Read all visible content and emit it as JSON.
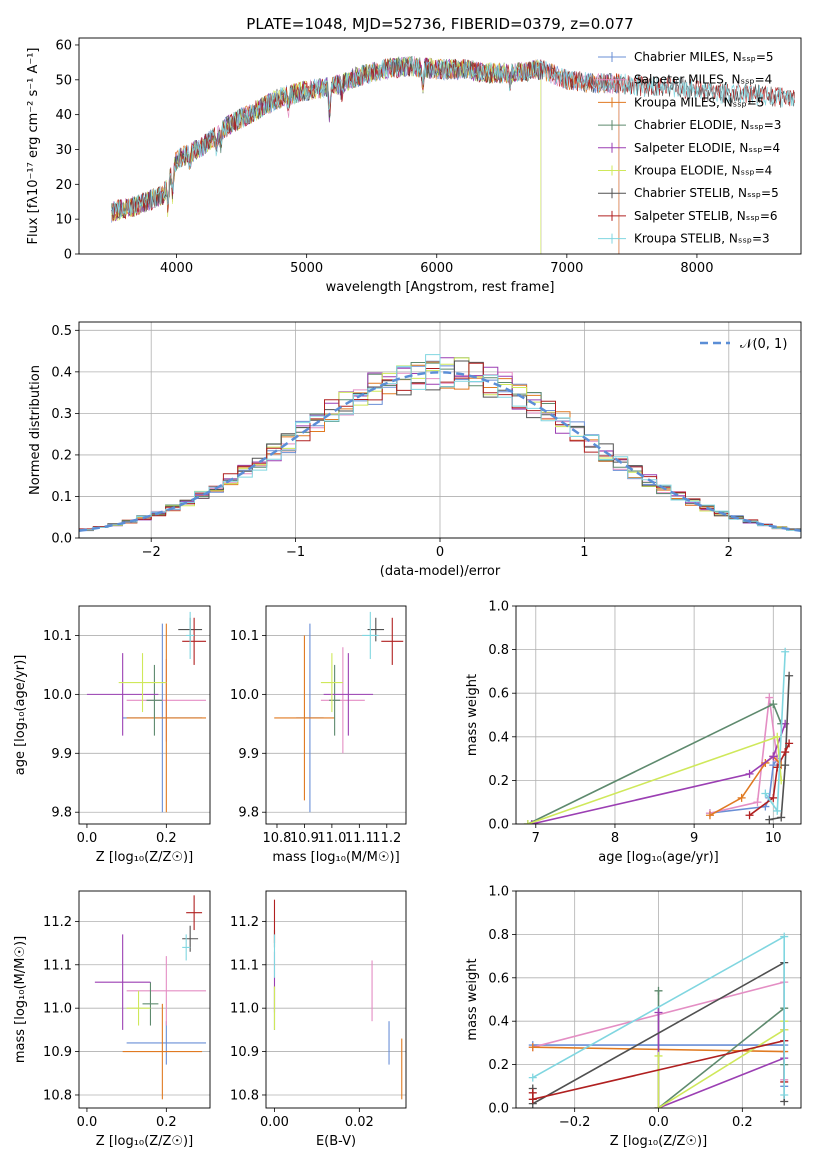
{
  "title": "PLATE=1048, MJD=52736, FIBERID=0379, z=0.077",
  "colors": {
    "chabrier_miles": "#6a8fd6",
    "salpeter_miles": "#e48ec4",
    "kroupa_miles": "#e07a22",
    "chabrier_elodie": "#5e8a6e",
    "salpeter_elodie": "#9b3fb3",
    "kroupa_elodie": "#cfe85a",
    "chabrier_stelib": "#505050",
    "salpeter_stelib": "#b02020",
    "kroupa_stelib": "#80d6e0",
    "normal": "#5b8ed6"
  },
  "chart_data": [
    {
      "id": "spectrum",
      "type": "line",
      "xlabel": "wavelength [Angstrom, rest frame]",
      "ylabel": "Flux [fλ10⁻¹⁷ erg cm⁻² s⁻¹ A⁻¹]",
      "xlim": [
        3250,
        8800
      ],
      "ylim": [
        0,
        62
      ],
      "xticks": [
        "4000",
        "5000",
        "6000",
        "7000",
        "8000"
      ],
      "yticks": [
        "0",
        "10",
        "20",
        "30",
        "40",
        "50",
        "60"
      ],
      "legend": "upper right",
      "series": [
        {
          "name": "Chabrier MILES, N_SSP=5",
          "key": "chabrier_miles",
          "x_end": 7400
        },
        {
          "name": "Salpeter MILES, N_SSP=4",
          "key": "salpeter_miles",
          "x_end": 7400
        },
        {
          "name": "Kroupa MILES, N_SSP=5",
          "key": "kroupa_miles",
          "x_end": 7400
        },
        {
          "name": "Chabrier ELODIE, N_SSP=3",
          "key": "chabrier_elodie",
          "x_end": 6800
        },
        {
          "name": "Salpeter ELODIE, N_SSP=4",
          "key": "salpeter_elodie",
          "x_end": 6800
        },
        {
          "name": "Kroupa ELODIE, N_SSP=4",
          "key": "kroupa_elodie",
          "x_end": 6800
        },
        {
          "name": "Chabrier STELIB, N_SSP=5",
          "key": "chabrier_stelib",
          "x_end": 8750
        },
        {
          "name": "Salpeter STELIB, N_SSP=6",
          "key": "salpeter_stelib",
          "x_end": 8750
        },
        {
          "name": "Kroupa STELIB, N_SSP=3",
          "key": "kroupa_stelib",
          "x_end": 8750
        }
      ],
      "continuum": {
        "x": [
          3500,
          3700,
          3900,
          4000,
          4200,
          4400,
          4600,
          4800,
          5000,
          5200,
          5400,
          5600,
          5800,
          6000,
          6200,
          6400,
          6600,
          6800,
          7000,
          7200,
          7400,
          7600,
          7800,
          8000,
          8200,
          8400,
          8600,
          8750
        ],
        "y": [
          12,
          14,
          17,
          27,
          31,
          37,
          41,
          45,
          47,
          48,
          51,
          53,
          54,
          53,
          53,
          52,
          52,
          53,
          50,
          49,
          49,
          48,
          48,
          47,
          46,
          46,
          45,
          45
        ]
      }
    },
    {
      "id": "residuals",
      "type": "bar",
      "xlabel": "(data-model)/error",
      "ylabel": "Normed distribution",
      "xlim": [
        -2.5,
        2.5
      ],
      "ylim": [
        0,
        0.52
      ],
      "xticks": [
        "−2",
        "−1",
        "0",
        "1",
        "2"
      ],
      "yticks": [
        "0.0",
        "0.1",
        "0.2",
        "0.3",
        "0.4",
        "0.5"
      ],
      "legend": "upper right",
      "legend_label": "𝒩(0, 1)",
      "bin_width": 0.1,
      "grid": true
    },
    {
      "id": "age_vs_Z",
      "type": "scatter",
      "xlabel": "Z [log₁₀(Z/Z☉)]",
      "ylabel": "age  [log₁₀(age/yr)]",
      "xlim": [
        -0.02,
        0.31
      ],
      "ylim": [
        9.78,
        10.15
      ],
      "xticks": [
        "0.0",
        "0.2"
      ],
      "yticks": [
        "9.8",
        "9.9",
        "10.0",
        "10.1"
      ],
      "points": [
        {
          "key": "chabrier_miles",
          "x": 0.19,
          "xerr": 0.1,
          "y": 9.96,
          "yerr": 0.16
        },
        {
          "key": "salpeter_miles",
          "x": 0.2,
          "xerr": 0.1,
          "y": 9.99,
          "yerr": 0.07
        },
        {
          "key": "kroupa_miles",
          "x": 0.2,
          "xerr": 0.1,
          "y": 9.96,
          "yerr": 0.16
        },
        {
          "key": "chabrier_elodie",
          "x": 0.17,
          "xerr": 0.02,
          "y": 9.99,
          "yerr": 0.06
        },
        {
          "key": "salpeter_elodie",
          "x": 0.09,
          "xerr": 0.09,
          "y": 10.0,
          "yerr": 0.07
        },
        {
          "key": "kroupa_elodie",
          "x": 0.14,
          "xerr": 0.06,
          "y": 10.02,
          "yerr": 0.05
        },
        {
          "key": "chabrier_stelib",
          "x": 0.26,
          "xerr": 0.03,
          "y": 10.11,
          "yerr": 0.02
        },
        {
          "key": "salpeter_stelib",
          "x": 0.27,
          "xerr": 0.03,
          "y": 10.09,
          "yerr": 0.04
        },
        {
          "key": "kroupa_stelib",
          "x": 0.26,
          "xerr": 0.01,
          "y": 10.1,
          "yerr": 0.04
        }
      ]
    },
    {
      "id": "age_vs_mass",
      "type": "scatter",
      "xlabel": "mass [log₁₀(M/M☉)]",
      "ylabel": "",
      "xlim": [
        10.76,
        11.27
      ],
      "ylim": [
        9.78,
        10.15
      ],
      "xticks": [
        "10.8",
        "10.9",
        "11.0",
        "11.1",
        "11.2"
      ],
      "yticks": [
        "9.8",
        "9.9",
        "10.0",
        "10.1"
      ],
      "points": [
        {
          "key": "chabrier_miles",
          "x": 10.92,
          "xerr": 0.05,
          "y": 9.96,
          "yerr": 0.16
        },
        {
          "key": "salpeter_miles",
          "x": 11.04,
          "xerr": 0.08,
          "y": 9.99,
          "yerr": 0.09
        },
        {
          "key": "kroupa_miles",
          "x": 10.9,
          "xerr": 0.11,
          "y": 9.96,
          "yerr": 0.14
        },
        {
          "key": "chabrier_elodie",
          "x": 11.01,
          "xerr": 0.02,
          "y": 9.99,
          "yerr": 0.06
        },
        {
          "key": "salpeter_elodie",
          "x": 11.06,
          "xerr": 0.09,
          "y": 10.0,
          "yerr": 0.07
        },
        {
          "key": "kroupa_elodie",
          "x": 11.0,
          "xerr": 0.04,
          "y": 10.02,
          "yerr": 0.05
        },
        {
          "key": "chabrier_stelib",
          "x": 11.16,
          "xerr": 0.03,
          "y": 10.11,
          "yerr": 0.02
        },
        {
          "key": "salpeter_stelib",
          "x": 11.22,
          "xerr": 0.04,
          "y": 10.09,
          "yerr": 0.04
        },
        {
          "key": "kroupa_stelib",
          "x": 11.14,
          "xerr": 0.03,
          "y": 10.1,
          "yerr": 0.04
        }
      ]
    },
    {
      "id": "weight_vs_age",
      "type": "line",
      "xlabel": "age  [log₁₀(age/yr)]",
      "ylabel": "mass weight",
      "xlim": [
        6.75,
        10.35
      ],
      "ylim": [
        0,
        1
      ],
      "xticks": [
        "7",
        "8",
        "9",
        "10"
      ],
      "yticks": [
        "0.0",
        "0.2",
        "0.4",
        "0.6",
        "0.8",
        "1.0"
      ],
      "grid": true,
      "series": [
        {
          "key": "chabrier_miles",
          "x": [
            9.2,
            9.9,
            9.95,
            10.0,
            10.05
          ],
          "y": [
            0.05,
            0.08,
            0.12,
            0.27,
            0.3
          ]
        },
        {
          "key": "salpeter_miles",
          "x": [
            9.2,
            9.8,
            9.95,
            10.05
          ],
          "y": [
            0.05,
            0.1,
            0.58,
            0.29
          ]
        },
        {
          "key": "kroupa_miles",
          "x": [
            9.2,
            9.6,
            9.9,
            10.0,
            10.1
          ],
          "y": [
            0.04,
            0.12,
            0.28,
            0.31,
            0.27
          ]
        },
        {
          "key": "chabrier_elodie",
          "x": [
            6.9,
            10.0,
            10.1
          ],
          "y": [
            0.0,
            0.55,
            0.46
          ]
        },
        {
          "key": "salpeter_elodie",
          "x": [
            6.95,
            9.7,
            10.0,
            10.15
          ],
          "y": [
            0.0,
            0.23,
            0.31,
            0.46
          ]
        },
        {
          "key": "kroupa_elodie",
          "x": [
            6.9,
            10.05,
            10.1
          ],
          "y": [
            0.0,
            0.4,
            0.2
          ]
        },
        {
          "key": "chabrier_stelib",
          "x": [
            9.95,
            10.1,
            10.15,
            10.2
          ],
          "y": [
            0.02,
            0.03,
            0.27,
            0.68
          ]
        },
        {
          "key": "salpeter_stelib",
          "x": [
            9.7,
            10.0,
            10.05,
            10.15,
            10.2
          ],
          "y": [
            0.04,
            0.12,
            0.26,
            0.33,
            0.37
          ]
        },
        {
          "key": "kroupa_stelib",
          "x": [
            9.9,
            10.05,
            10.15
          ],
          "y": [
            0.14,
            0.06,
            0.79
          ]
        }
      ]
    },
    {
      "id": "mass_vs_Z",
      "type": "scatter",
      "xlabel": "Z [log₁₀(Z/Z☉)]",
      "ylabel": "mass [log₁₀(M/M☉)]",
      "xlim": [
        -0.02,
        0.31
      ],
      "ylim": [
        10.77,
        11.27
      ],
      "xticks": [
        "0.0",
        "0.2"
      ],
      "yticks": [
        "10.8",
        "10.9",
        "11.0",
        "11.1",
        "11.2"
      ],
      "points": [
        {
          "key": "chabrier_miles",
          "x": 0.2,
          "xerr": 0.1,
          "y": 10.92,
          "yerr": 0.05
        },
        {
          "key": "salpeter_miles",
          "x": 0.2,
          "xerr": 0.1,
          "y": 11.04,
          "yerr": 0.08
        },
        {
          "key": "kroupa_miles",
          "x": 0.19,
          "xerr": 0.1,
          "y": 10.9,
          "yerr": 0.11
        },
        {
          "key": "chabrier_elodie",
          "x": 0.16,
          "xerr": 0.02,
          "y": 11.01,
          "yerr": 0.05
        },
        {
          "key": "salpeter_elodie",
          "x": 0.09,
          "xerr": 0.07,
          "y": 11.06,
          "yerr": 0.11
        },
        {
          "key": "kroupa_elodie",
          "x": 0.13,
          "xerr": 0.03,
          "y": 11.0,
          "yerr": 0.04
        },
        {
          "key": "chabrier_stelib",
          "x": 0.26,
          "xerr": 0.02,
          "y": 11.16,
          "yerr": 0.03
        },
        {
          "key": "salpeter_stelib",
          "x": 0.27,
          "xerr": 0.02,
          "y": 11.22,
          "yerr": 0.04
        },
        {
          "key": "kroupa_stelib",
          "x": 0.25,
          "xerr": 0.01,
          "y": 11.14,
          "yerr": 0.03
        }
      ]
    },
    {
      "id": "mass_vs_ebv",
      "type": "scatter",
      "xlabel": "E(B-V)",
      "ylabel": "",
      "xlim": [
        -0.002,
        0.031
      ],
      "ylim": [
        10.77,
        11.27
      ],
      "xticks": [
        "0.00",
        "0.02"
      ],
      "yticks": [
        "10.8",
        "10.9",
        "11.0",
        "11.1",
        "11.2"
      ],
      "points": [
        {
          "key": "chabrier_miles",
          "x": 0.027,
          "xerr": 0.0,
          "y": 10.92,
          "yerr": 0.05
        },
        {
          "key": "salpeter_miles",
          "x": 0.023,
          "xerr": 0.0,
          "y": 11.04,
          "yerr": 0.07
        },
        {
          "key": "kroupa_miles",
          "x": 0.03,
          "xerr": 0.0,
          "y": 10.86,
          "yerr": 0.07
        },
        {
          "key": "chabrier_elodie",
          "x": 0.0,
          "xerr": 0.0,
          "y": 11.0,
          "yerr": 0.05
        },
        {
          "key": "salpeter_elodie",
          "x": 0.0,
          "xerr": 0.0,
          "y": 11.06,
          "yerr": 0.07
        },
        {
          "key": "kroupa_elodie",
          "x": 0.0,
          "xerr": 0.0,
          "y": 11.0,
          "yerr": 0.05
        },
        {
          "key": "chabrier_stelib",
          "x": 0.0,
          "xerr": 0.0,
          "y": 11.16,
          "yerr": 0.02
        },
        {
          "key": "salpeter_stelib",
          "x": 0.0,
          "xerr": 0.0,
          "y": 11.2,
          "yerr": 0.05
        },
        {
          "key": "kroupa_stelib",
          "x": 0.0,
          "xerr": 0.0,
          "y": 11.12,
          "yerr": 0.05
        }
      ]
    },
    {
      "id": "weight_vs_Z",
      "type": "line",
      "xlabel": "Z [log₁₀(Z/Z☉)]",
      "ylabel": "mass weight",
      "xlim": [
        -0.34,
        0.34
      ],
      "ylim": [
        0,
        1
      ],
      "xticks": [
        "−0.2",
        "0.0",
        "0.2"
      ],
      "yticks": [
        "0.0",
        "0.2",
        "0.4",
        "0.6",
        "0.8",
        "1.0"
      ],
      "grid": true,
      "series": [
        {
          "key": "chabrier_miles",
          "x": [
            -0.3,
            0.3,
            0.3
          ],
          "y": [
            0.29,
            0.29,
            0.1
          ]
        },
        {
          "key": "salpeter_miles",
          "x": [
            -0.3,
            0.3,
            0.3
          ],
          "y": [
            0.28,
            0.58,
            0.13
          ]
        },
        {
          "key": "kroupa_miles",
          "x": [
            -0.3,
            0.3,
            0.3
          ],
          "y": [
            0.28,
            0.26,
            0.36
          ]
        },
        {
          "key": "chabrier_elodie",
          "x": [
            0.0,
            0.0,
            0.3,
            0.3
          ],
          "y": [
            0.54,
            0.0,
            0.46,
            0.2
          ]
        },
        {
          "key": "salpeter_elodie",
          "x": [
            0.0,
            0.0,
            0.3,
            0.3
          ],
          "y": [
            0.44,
            0.0,
            0.23,
            0.31
          ]
        },
        {
          "key": "kroupa_elodie",
          "x": [
            0.0,
            0.0,
            0.3,
            0.3
          ],
          "y": [
            0.24,
            0.0,
            0.36,
            0.4
          ]
        },
        {
          "key": "chabrier_stelib",
          "x": [
            -0.3,
            -0.3,
            0.3,
            0.3
          ],
          "y": [
            0.09,
            0.02,
            0.67,
            0.03
          ]
        },
        {
          "key": "salpeter_stelib",
          "x": [
            -0.3,
            -0.3,
            0.3,
            0.3
          ],
          "y": [
            0.07,
            0.04,
            0.31,
            0.12
          ]
        },
        {
          "key": "kroupa_stelib",
          "x": [
            -0.3,
            0.3,
            0.3
          ],
          "y": [
            0.14,
            0.79,
            0.06
          ]
        }
      ]
    }
  ]
}
